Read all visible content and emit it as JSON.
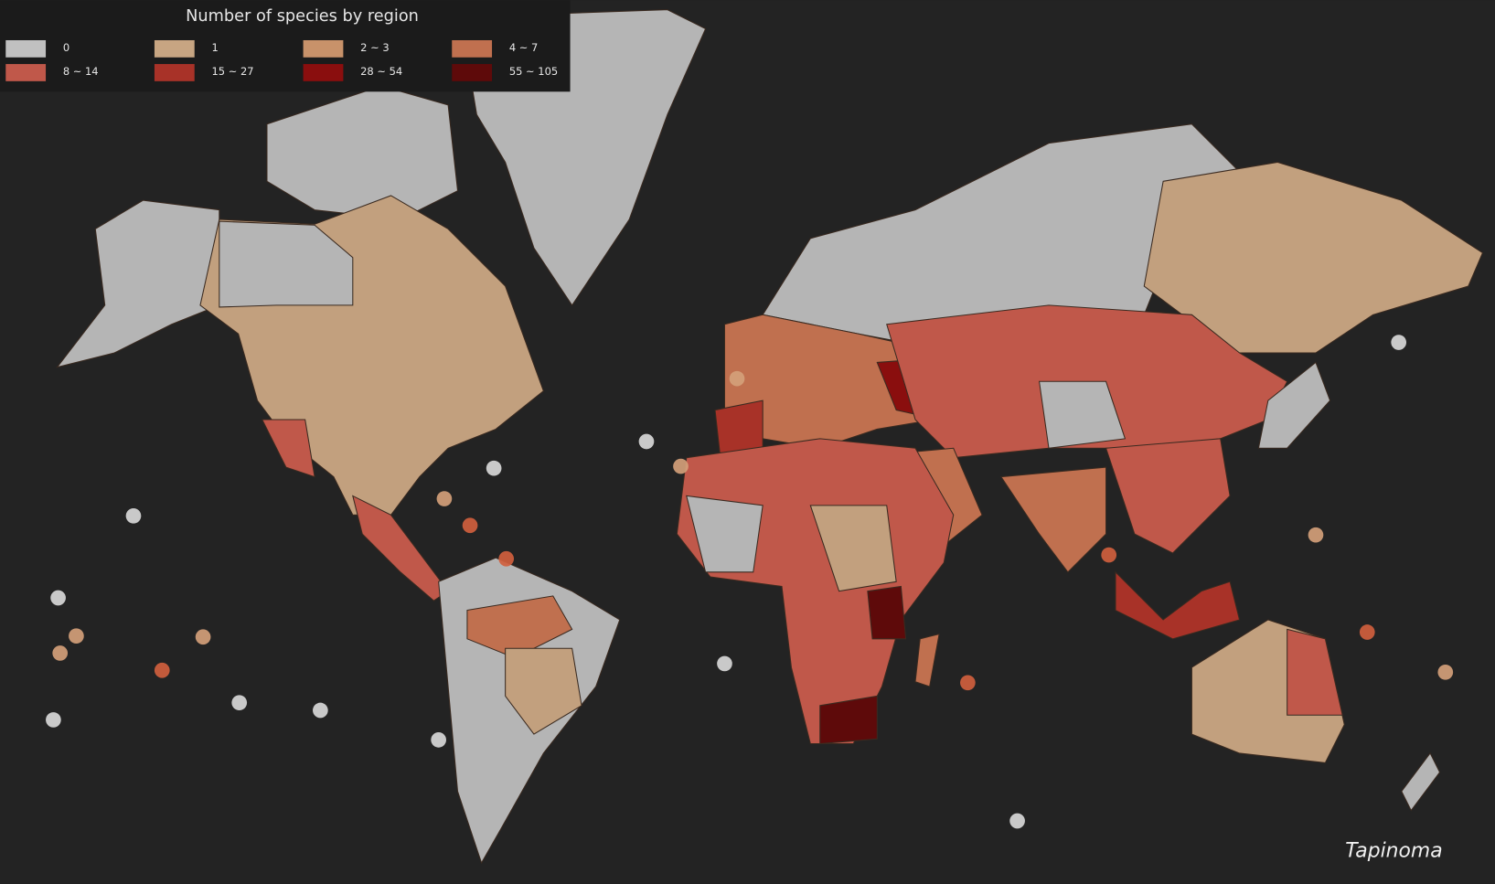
{
  "legend": {
    "title": "Number of species by region",
    "items": [
      {
        "label": "0",
        "color": "#c0c0c0"
      },
      {
        "label": "1",
        "color": "#c7a582"
      },
      {
        "label": "2 ~ 3",
        "color": "#c8926a"
      },
      {
        "label": "4 ~ 7",
        "color": "#c0704f"
      },
      {
        "label": "8 ~ 14",
        "color": "#c0584a"
      },
      {
        "label": "15 ~ 27",
        "color": "#a83228"
      },
      {
        "label": "28 ~ 54",
        "color": "#8a0e0e"
      },
      {
        "label": "55 ~ 105",
        "color": "#5e0a0a"
      }
    ]
  },
  "caption": "Tapinoma"
}
